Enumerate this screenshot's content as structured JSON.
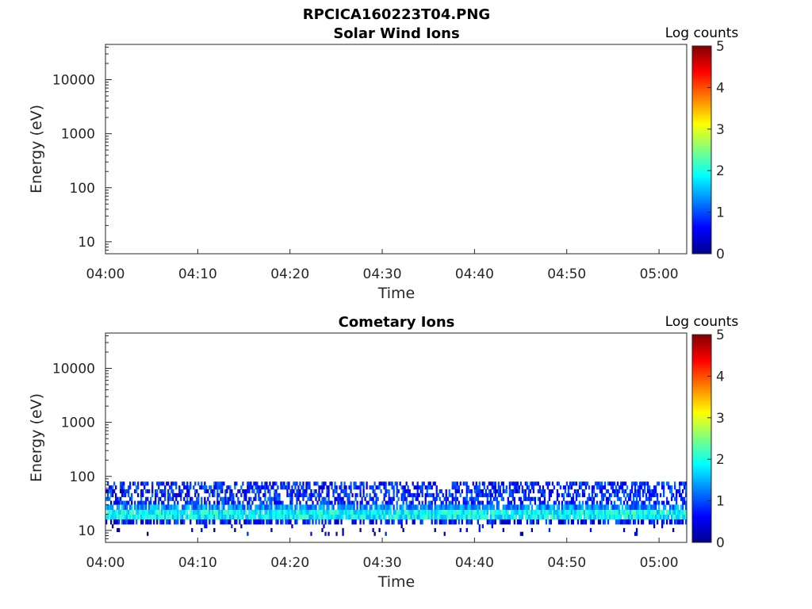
{
  "figure": {
    "title": "RPCICA160223T04.PNG"
  },
  "chart_data": [
    {
      "type": "heatmap",
      "title": "Solar Wind Ions",
      "xlabel": "Time",
      "ylabel": "Energy (eV)",
      "yscale": "log",
      "ylim": [
        6,
        45000
      ],
      "xlim": [
        "04:00",
        "05:03"
      ],
      "xticks": [
        "04:00",
        "04:10",
        "04:20",
        "04:30",
        "04:40",
        "04:50",
        "05:00"
      ],
      "yticks": [
        10,
        100,
        1000,
        10000
      ],
      "yticklabels": [
        "10",
        "100",
        "1000",
        "10000"
      ],
      "colorbar": {
        "label": "Log counts",
        "range": [
          0,
          5
        ],
        "ticks": [
          "0",
          "1",
          "2",
          "3",
          "4",
          "5"
        ],
        "colormap": "jet"
      },
      "bands": []
    },
    {
      "type": "heatmap",
      "title": "Cometary Ions",
      "xlabel": "Time",
      "ylabel": "Energy (eV)",
      "yscale": "log",
      "ylim": [
        6,
        45000
      ],
      "xlim": [
        "04:00",
        "05:03"
      ],
      "xticks": [
        "04:00",
        "04:10",
        "04:20",
        "04:30",
        "04:40",
        "04:50",
        "05:00"
      ],
      "yticks": [
        10,
        100,
        1000,
        10000
      ],
      "yticklabels": [
        "10",
        "100",
        "1000",
        "10000"
      ],
      "colorbar": {
        "label": "Log counts",
        "range": [
          0,
          5
        ],
        "ticks": [
          "0",
          "1",
          "2",
          "3",
          "4",
          "5"
        ],
        "colormap": "jet"
      },
      "bands": [
        {
          "e_low": 30,
          "e_high": 80,
          "log_counts": 0.8,
          "fill": 0.55
        },
        {
          "e_low": 24,
          "e_high": 30,
          "log_counts": 1.3,
          "fill": 0.85
        },
        {
          "e_low": 16,
          "e_high": 24,
          "log_counts": 1.9,
          "fill": 0.98
        },
        {
          "e_low": 13,
          "e_high": 16,
          "log_counts": 0.7,
          "fill": 0.6
        },
        {
          "e_low": 8,
          "e_high": 13,
          "log_counts": 0.4,
          "fill": 0.05
        }
      ]
    }
  ]
}
